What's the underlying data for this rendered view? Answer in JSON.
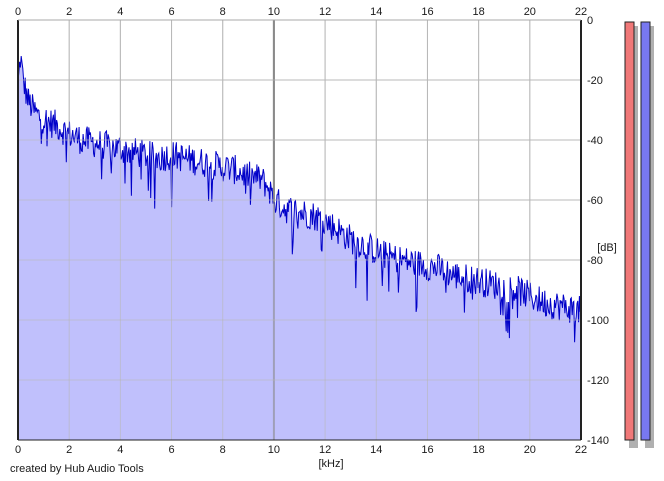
{
  "footer": {
    "credit": "created by Hub Audio Tools"
  },
  "colors": {
    "fill": "#c0c0fc",
    "line": "#0000c8",
    "grid": "#b8b8b8",
    "grid_major": "#8a8a8a",
    "meter_left": "#f07878",
    "meter_right": "#7878f0",
    "shadow": "#b0b0b0"
  },
  "chart_data": {
    "type": "area",
    "xlabel": "[kHz]",
    "ylabel": "[dB]",
    "xlim": [
      0,
      22
    ],
    "ylim": [
      -140,
      0
    ],
    "x_ticks": [
      "0",
      "2",
      "4",
      "6",
      "8",
      "10",
      "12",
      "14",
      "16",
      "18",
      "20",
      "22"
    ],
    "y_ticks": [
      "0",
      "-20",
      "-40",
      "-60",
      "-80",
      "-100",
      "-120",
      "-140"
    ],
    "grid": true,
    "series": [
      {
        "x": [
          0,
          0.1,
          0.2,
          0.4,
          0.6,
          0.8,
          1.0,
          1.2,
          1.5,
          1.8,
          2.0,
          2.5,
          3.0,
          3.5,
          4.0,
          4.5,
          5.0,
          5.5,
          6.0,
          6.5,
          7.0,
          7.5,
          8.0,
          8.5,
          9.0,
          9.5,
          9.8,
          10.0,
          10.5,
          11.0,
          11.5,
          12.0,
          12.5,
          13.0,
          13.5,
          14.0,
          14.5,
          15.0,
          15.5,
          16.0,
          16.5,
          17.0,
          17.5,
          18.0,
          18.5,
          19.0,
          19.5,
          20.0,
          20.5,
          21.0,
          21.5,
          22.0
        ],
        "values": [
          -22,
          -12,
          -20,
          -27,
          -30,
          -32,
          -33,
          -34,
          -35,
          -37,
          -38,
          -40,
          -41,
          -42,
          -43,
          -44,
          -45,
          -46,
          -45,
          -46,
          -47,
          -48,
          -49,
          -50,
          -52,
          -53,
          -56,
          -60,
          -63,
          -64,
          -65,
          -67,
          -70,
          -73,
          -75,
          -77,
          -79,
          -80,
          -81,
          -82,
          -83,
          -85,
          -86,
          -87,
          -88,
          -89,
          -90,
          -92,
          -94,
          -95,
          -96,
          -97
        ]
      }
    ],
    "meters": {
      "left": -140,
      "right": -140
    }
  }
}
